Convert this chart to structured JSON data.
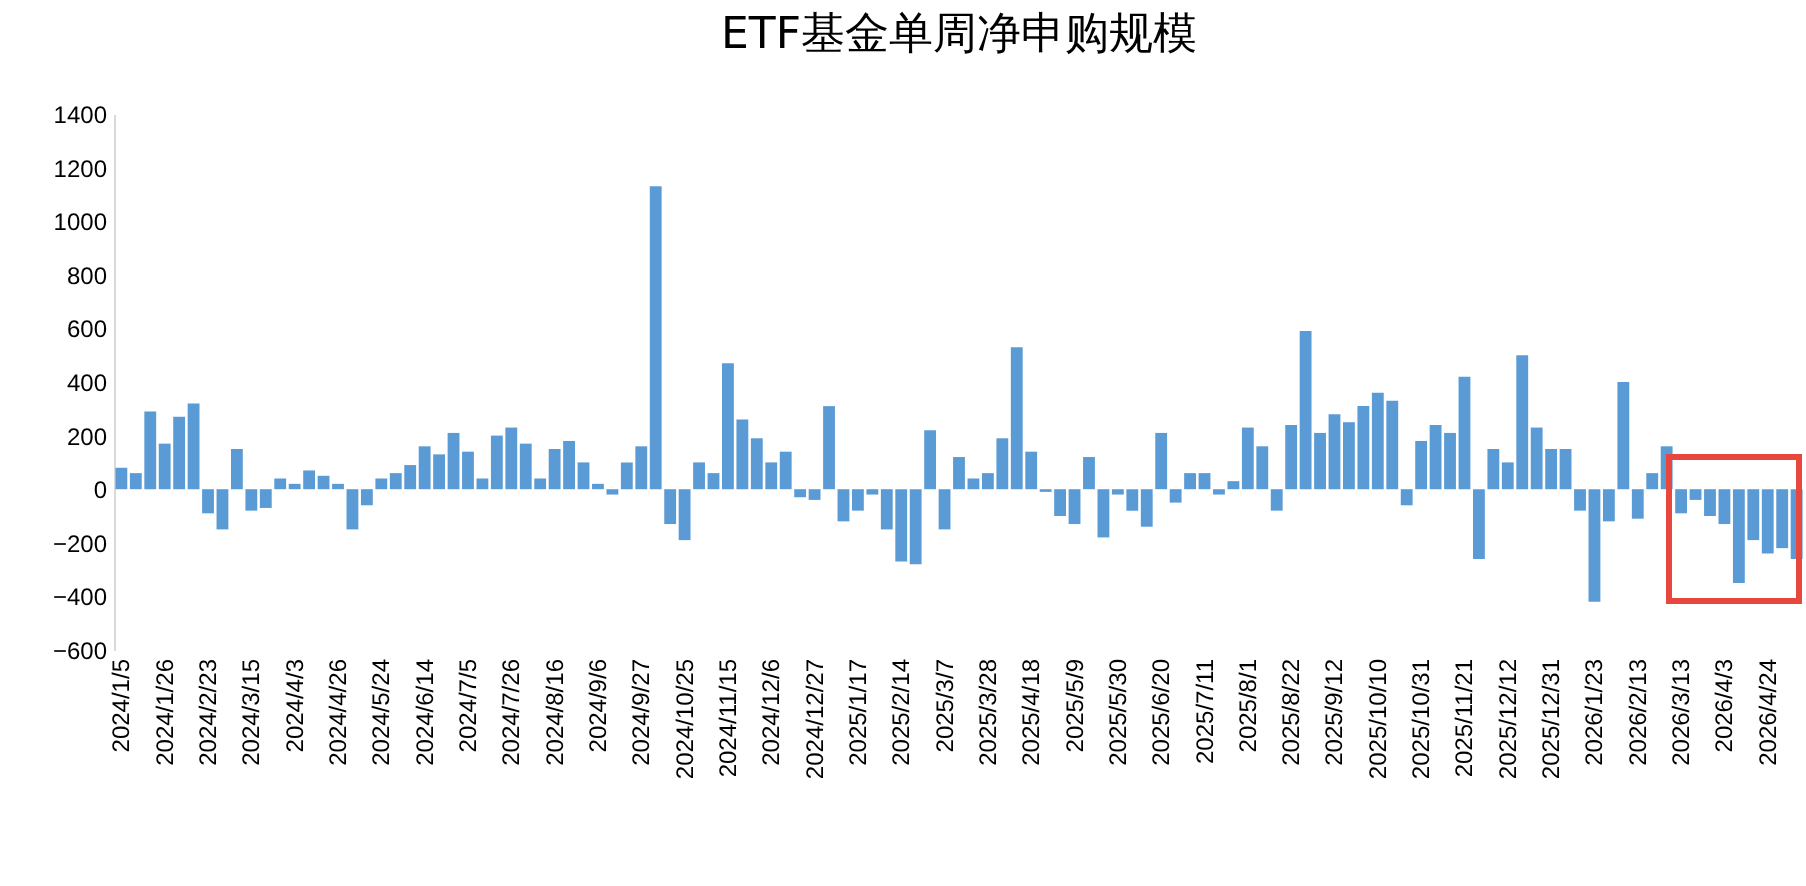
{
  "chart_data": {
    "type": "bar",
    "title": "ETF基金单周净申购规模",
    "categories": [
      "2024/1/5",
      null,
      null,
      "2024/1/26",
      null,
      null,
      "2024/2/23",
      null,
      null,
      "2024/3/15",
      null,
      null,
      "2024/4/3",
      null,
      null,
      "2024/4/26",
      null,
      null,
      "2024/5/24",
      null,
      null,
      "2024/6/14",
      null,
      null,
      "2024/7/5",
      null,
      null,
      "2024/7/26",
      null,
      null,
      "2024/8/16",
      null,
      null,
      "2024/9/6",
      null,
      null,
      "2024/9/27",
      null,
      null,
      "2024/10/25",
      null,
      null,
      "2024/11/15",
      null,
      null,
      "2024/12/6",
      null,
      null,
      "2024/12/27",
      null,
      null,
      "2025/1/17",
      null,
      null,
      "2025/2/14",
      null,
      null,
      "2025/3/7",
      null,
      null,
      "2025/3/28",
      null,
      null,
      "2025/4/18",
      null,
      null,
      "2025/5/9",
      null,
      null,
      "2025/5/30",
      null,
      null,
      "2025/6/20",
      null,
      null,
      "2025/7/11",
      null,
      null,
      "2025/8/1",
      null,
      null,
      "2025/8/22",
      null,
      null,
      "2025/9/12",
      null,
      null,
      "2025/10/10",
      null,
      null,
      "2025/10/31",
      null,
      null,
      "2025/11/21",
      null,
      null,
      "2025/12/12",
      null,
      null,
      "2025/12/31",
      null,
      null,
      "2026/1/23",
      null,
      null,
      "2026/2/13",
      null,
      null,
      "2026/3/13",
      null,
      null,
      "2026/4/3",
      null,
      null,
      "2026/4/24",
      null,
      null
    ],
    "values": [
      80,
      60,
      290,
      170,
      270,
      320,
      -90,
      -150,
      150,
      -80,
      -70,
      40,
      20,
      70,
      50,
      20,
      -150,
      -60,
      40,
      60,
      90,
      160,
      130,
      210,
      140,
      40,
      200,
      230,
      170,
      40,
      150,
      180,
      100,
      20,
      -20,
      100,
      160,
      1130,
      -130,
      -190,
      100,
      60,
      470,
      260,
      190,
      100,
      140,
      -30,
      -40,
      310,
      -120,
      -80,
      -20,
      -150,
      -270,
      -280,
      220,
      -150,
      120,
      40,
      60,
      190,
      530,
      140,
      -10,
      -100,
      -130,
      120,
      -180,
      -20,
      -80,
      -140,
      210,
      -50,
      60,
      60,
      -20,
      30,
      230,
      160,
      -80,
      240,
      590,
      210,
      280,
      250,
      310,
      360,
      330,
      -60,
      180,
      240,
      210,
      420,
      -260,
      150,
      100,
      500,
      230,
      150,
      150,
      -80,
      -420,
      -120,
      400,
      -110,
      60,
      160,
      -90,
      -40,
      -100,
      -130,
      -350,
      -190,
      -240,
      -220,
      -260
    ],
    "color": "#5b9bd5",
    "ylim": [
      -600,
      1400
    ],
    "yticks": [
      -600,
      -400,
      -200,
      0,
      200,
      400,
      600,
      800,
      1000,
      1200,
      1400
    ],
    "grid": false
  }
}
